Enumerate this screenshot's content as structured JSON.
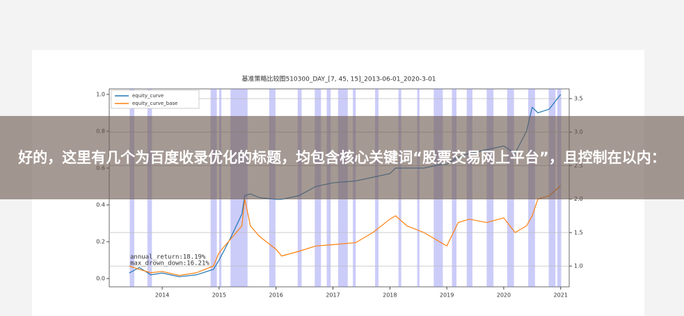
{
  "chart_data": {
    "type": "line",
    "title": "基准策略比较图510300_DAY_[7, 45, 15]_2013-06-01_2020-3-01",
    "x": [
      2013.42,
      2013.6,
      2013.8,
      2014.0,
      2014.3,
      2014.6,
      2014.9,
      2015.0,
      2015.2,
      2015.4,
      2015.45,
      2015.55,
      2015.7,
      2016.0,
      2016.1,
      2016.4,
      2016.7,
      2017.0,
      2017.4,
      2017.7,
      2018.0,
      2018.1,
      2018.3,
      2018.6,
      2018.9,
      2019.0,
      2019.2,
      2019.4,
      2019.7,
      2020.0,
      2020.2,
      2020.4,
      2020.5,
      2020.6,
      2020.8,
      2021.0
    ],
    "series": [
      {
        "name": "equity_curve",
        "color": "#1f77b4",
        "values": [
          0.03,
          0.06,
          0.02,
          0.03,
          0.01,
          0.02,
          0.05,
          0.1,
          0.22,
          0.35,
          0.45,
          0.46,
          0.44,
          0.43,
          0.43,
          0.45,
          0.5,
          0.52,
          0.53,
          0.55,
          0.57,
          0.6,
          0.6,
          0.6,
          0.62,
          0.62,
          0.66,
          0.68,
          0.7,
          0.72,
          0.68,
          0.8,
          0.93,
          0.9,
          0.92,
          1.0
        ]
      },
      {
        "name": "equity_curve_base",
        "color": "#ff7f0e",
        "axis": "y2",
        "values": [
          1.0,
          0.95,
          0.9,
          0.92,
          0.86,
          0.9,
          1.0,
          1.2,
          1.4,
          1.6,
          2.0,
          1.6,
          1.45,
          1.25,
          1.15,
          1.22,
          1.3,
          1.32,
          1.35,
          1.5,
          1.7,
          1.75,
          1.6,
          1.5,
          1.35,
          1.3,
          1.65,
          1.7,
          1.65,
          1.72,
          1.5,
          1.6,
          1.75,
          2.0,
          2.05,
          2.2
        ]
      }
    ],
    "spans": [
      [
        2013.43,
        2013.51
      ],
      [
        2013.74,
        2013.82
      ],
      [
        2014.85,
        2014.96
      ],
      [
        2015.0,
        2015.04
      ],
      [
        2015.2,
        2015.5
      ],
      [
        2015.88,
        2015.99
      ],
      [
        2016.38,
        2016.45
      ],
      [
        2016.68,
        2016.79
      ],
      [
        2016.89,
        2016.96
      ],
      [
        2017.09,
        2017.26
      ],
      [
        2017.35,
        2017.4
      ],
      [
        2017.74,
        2017.8
      ],
      [
        2018.15,
        2018.2
      ],
      [
        2018.48,
        2018.52
      ],
      [
        2018.77,
        2018.93
      ],
      [
        2019.09,
        2019.17
      ],
      [
        2019.35,
        2019.45
      ],
      [
        2019.7,
        2019.82
      ],
      [
        2020.06,
        2020.18
      ],
      [
        2020.43,
        2020.55
      ],
      [
        2020.79,
        2020.91
      ],
      [
        2020.94,
        2021.01
      ]
    ],
    "span_color": "#8080f0",
    "xlim": [
      2013.07,
      2021.15
    ],
    "xticks": [
      2014,
      2015,
      2016,
      2017,
      2018,
      2019,
      2020,
      2021
    ],
    "ylim": [
      -0.045,
      1.03
    ],
    "yticks": [
      {
        "value": 0,
        "label": "0.0"
      },
      0.2,
      0.4,
      0.6,
      0.8,
      {
        "value": 1,
        "label": "1.0"
      }
    ],
    "y2lim": [
      0.69,
      3.645
    ],
    "y2ticks": [
      {
        "value": 1,
        "label": "1.0"
      },
      1.5,
      {
        "value": 2,
        "label": "2.0"
      },
      2.5,
      {
        "value": 3,
        "label": "3.0"
      },
      3.5
    ],
    "grid": true,
    "legend": "upper-left",
    "annotations": [
      "annual_return:18.19%",
      "max_drown_down:16.21%"
    ]
  },
  "overlay_text": "好的，这里有几个为百度收录优化的标题，均包含核心关键词“股票交易网上平台”，且控制在以内："
}
